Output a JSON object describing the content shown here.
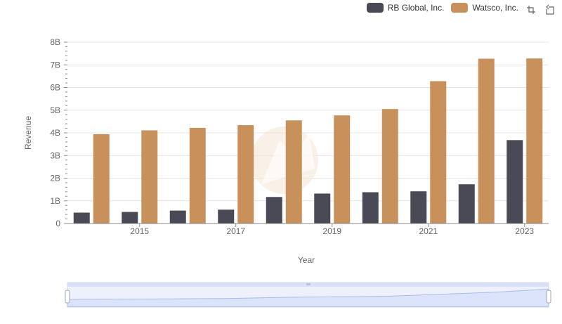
{
  "chart_data": {
    "type": "bar",
    "title": "",
    "xlabel": "Year",
    "ylabel": "Revenue",
    "categories": [
      "2014",
      "2015",
      "2016",
      "2017",
      "2018",
      "2019",
      "2020",
      "2021",
      "2022",
      "2023"
    ],
    "x_tick_labels": [
      "2015",
      "2017",
      "2019",
      "2021",
      "2023"
    ],
    "y_tick_labels": [
      "0",
      "1B",
      "2B",
      "3B",
      "4B",
      "5B",
      "6B",
      "7B",
      "8B"
    ],
    "ylim": [
      0,
      8000000000
    ],
    "legend_position": "top-right",
    "series": [
      {
        "name": "RB Global, Inc.",
        "color": "#4a4a56",
        "values": [
          480000000,
          510000000,
          570000000,
          610000000,
          1170000000,
          1320000000,
          1380000000,
          1420000000,
          1730000000,
          3680000000
        ]
      },
      {
        "name": "Watsco, Inc.",
        "color": "#c8915c",
        "values": [
          3940000000,
          4110000000,
          4220000000,
          4340000000,
          4550000000,
          4770000000,
          5050000000,
          6280000000,
          7270000000,
          7280000000
        ]
      }
    ]
  },
  "legend": {
    "items": [
      "RB Global, Inc.",
      "Watsco, Inc."
    ]
  },
  "toolbox": {
    "icons": [
      "zoom-icon",
      "restore-icon"
    ]
  }
}
